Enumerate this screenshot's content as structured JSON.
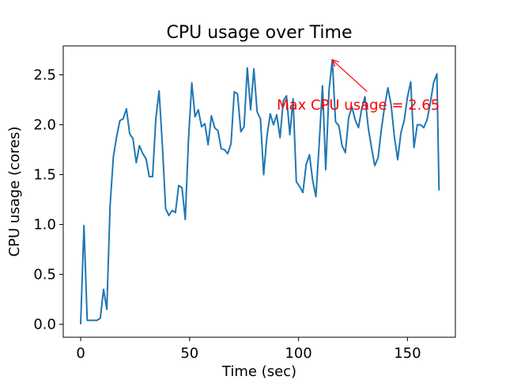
{
  "chart_data": {
    "type": "line",
    "title": "CPU usage over Time",
    "xlabel": "Time (sec)",
    "ylabel": "CPU usage (cores)",
    "xlim": [
      -8,
      172
    ],
    "ylim": [
      -0.13,
      2.79
    ],
    "x_ticks": [
      0,
      50,
      100,
      150
    ],
    "x_tick_labels": [
      "0",
      "50",
      "100",
      "150"
    ],
    "y_ticks": [
      0.0,
      0.5,
      1.0,
      1.5,
      2.0,
      2.5
    ],
    "y_tick_labels": [
      "0.0",
      "0.5",
      "1.0",
      "1.5",
      "2.0",
      "2.5"
    ],
    "grid": false,
    "series": [
      {
        "color": "#1f77b4",
        "x": [
          0,
          1.5,
          3,
          4.5,
          6,
          7.5,
          9,
          10.5,
          12,
          13.5,
          15,
          16.5,
          18,
          19.5,
          21,
          22.5,
          24,
          25.5,
          27,
          28.5,
          30,
          31.5,
          33,
          34.5,
          36,
          37.5,
          39,
          40.5,
          42,
          43.5,
          45,
          46.5,
          48,
          49.5,
          51,
          52.5,
          54,
          55.5,
          57,
          58.5,
          60,
          61.5,
          63,
          64.5,
          66,
          67.5,
          69,
          70.5,
          72,
          73.5,
          75,
          76.5,
          78,
          79.5,
          81,
          82.5,
          84,
          85.5,
          87,
          88.5,
          90,
          91.5,
          93,
          94.5,
          96,
          97.5,
          99,
          100.5,
          102,
          103.5,
          105,
          106.5,
          108,
          109.5,
          111,
          112.5,
          114,
          115.5,
          117,
          118.5,
          120,
          121.5,
          123,
          124.5,
          126,
          127.5,
          129,
          130.5,
          132,
          133.5,
          135,
          136.5,
          138,
          139.5,
          141,
          142.5,
          144,
          145.5,
          147,
          148.5,
          150,
          151.5,
          153,
          154.5,
          156,
          157.5,
          159,
          160.5,
          162,
          163.5,
          164.5
        ],
        "y": [
          0.0,
          0.99,
          0.04,
          0.04,
          0.04,
          0.04,
          0.06,
          0.35,
          0.15,
          1.18,
          1.68,
          1.88,
          2.04,
          2.06,
          2.16,
          1.91,
          1.86,
          1.62,
          1.79,
          1.71,
          1.66,
          1.48,
          1.48,
          2.06,
          2.34,
          1.79,
          1.16,
          1.09,
          1.14,
          1.12,
          1.39,
          1.37,
          1.05,
          1.85,
          2.42,
          2.08,
          2.15,
          1.98,
          2.01,
          1.8,
          2.09,
          1.97,
          1.94,
          1.76,
          1.75,
          1.71,
          1.81,
          2.33,
          2.31,
          1.93,
          1.98,
          2.57,
          2.15,
          2.56,
          2.13,
          2.06,
          1.5,
          1.88,
          2.11,
          2.0,
          2.1,
          1.87,
          2.24,
          2.29,
          1.9,
          2.26,
          1.43,
          1.38,
          1.32,
          1.6,
          1.7,
          1.44,
          1.28,
          1.82,
          2.39,
          1.55,
          2.35,
          2.65,
          2.03,
          1.99,
          1.79,
          1.72,
          2.07,
          2.18,
          2.05,
          1.97,
          2.16,
          2.28,
          1.97,
          1.77,
          1.59,
          1.67,
          1.95,
          2.18,
          2.37,
          2.2,
          1.88,
          1.65,
          1.92,
          2.04,
          2.28,
          2.43,
          1.77,
          2.0,
          2.0,
          1.97,
          2.05,
          2.22,
          2.42,
          2.51,
          1.34
        ]
      }
    ],
    "annotation": {
      "text": "Max CPU usage = 2.65",
      "color": "#ff0000",
      "point": [
        115.5,
        2.65
      ],
      "text_at": [
        90,
        2.15
      ]
    }
  }
}
